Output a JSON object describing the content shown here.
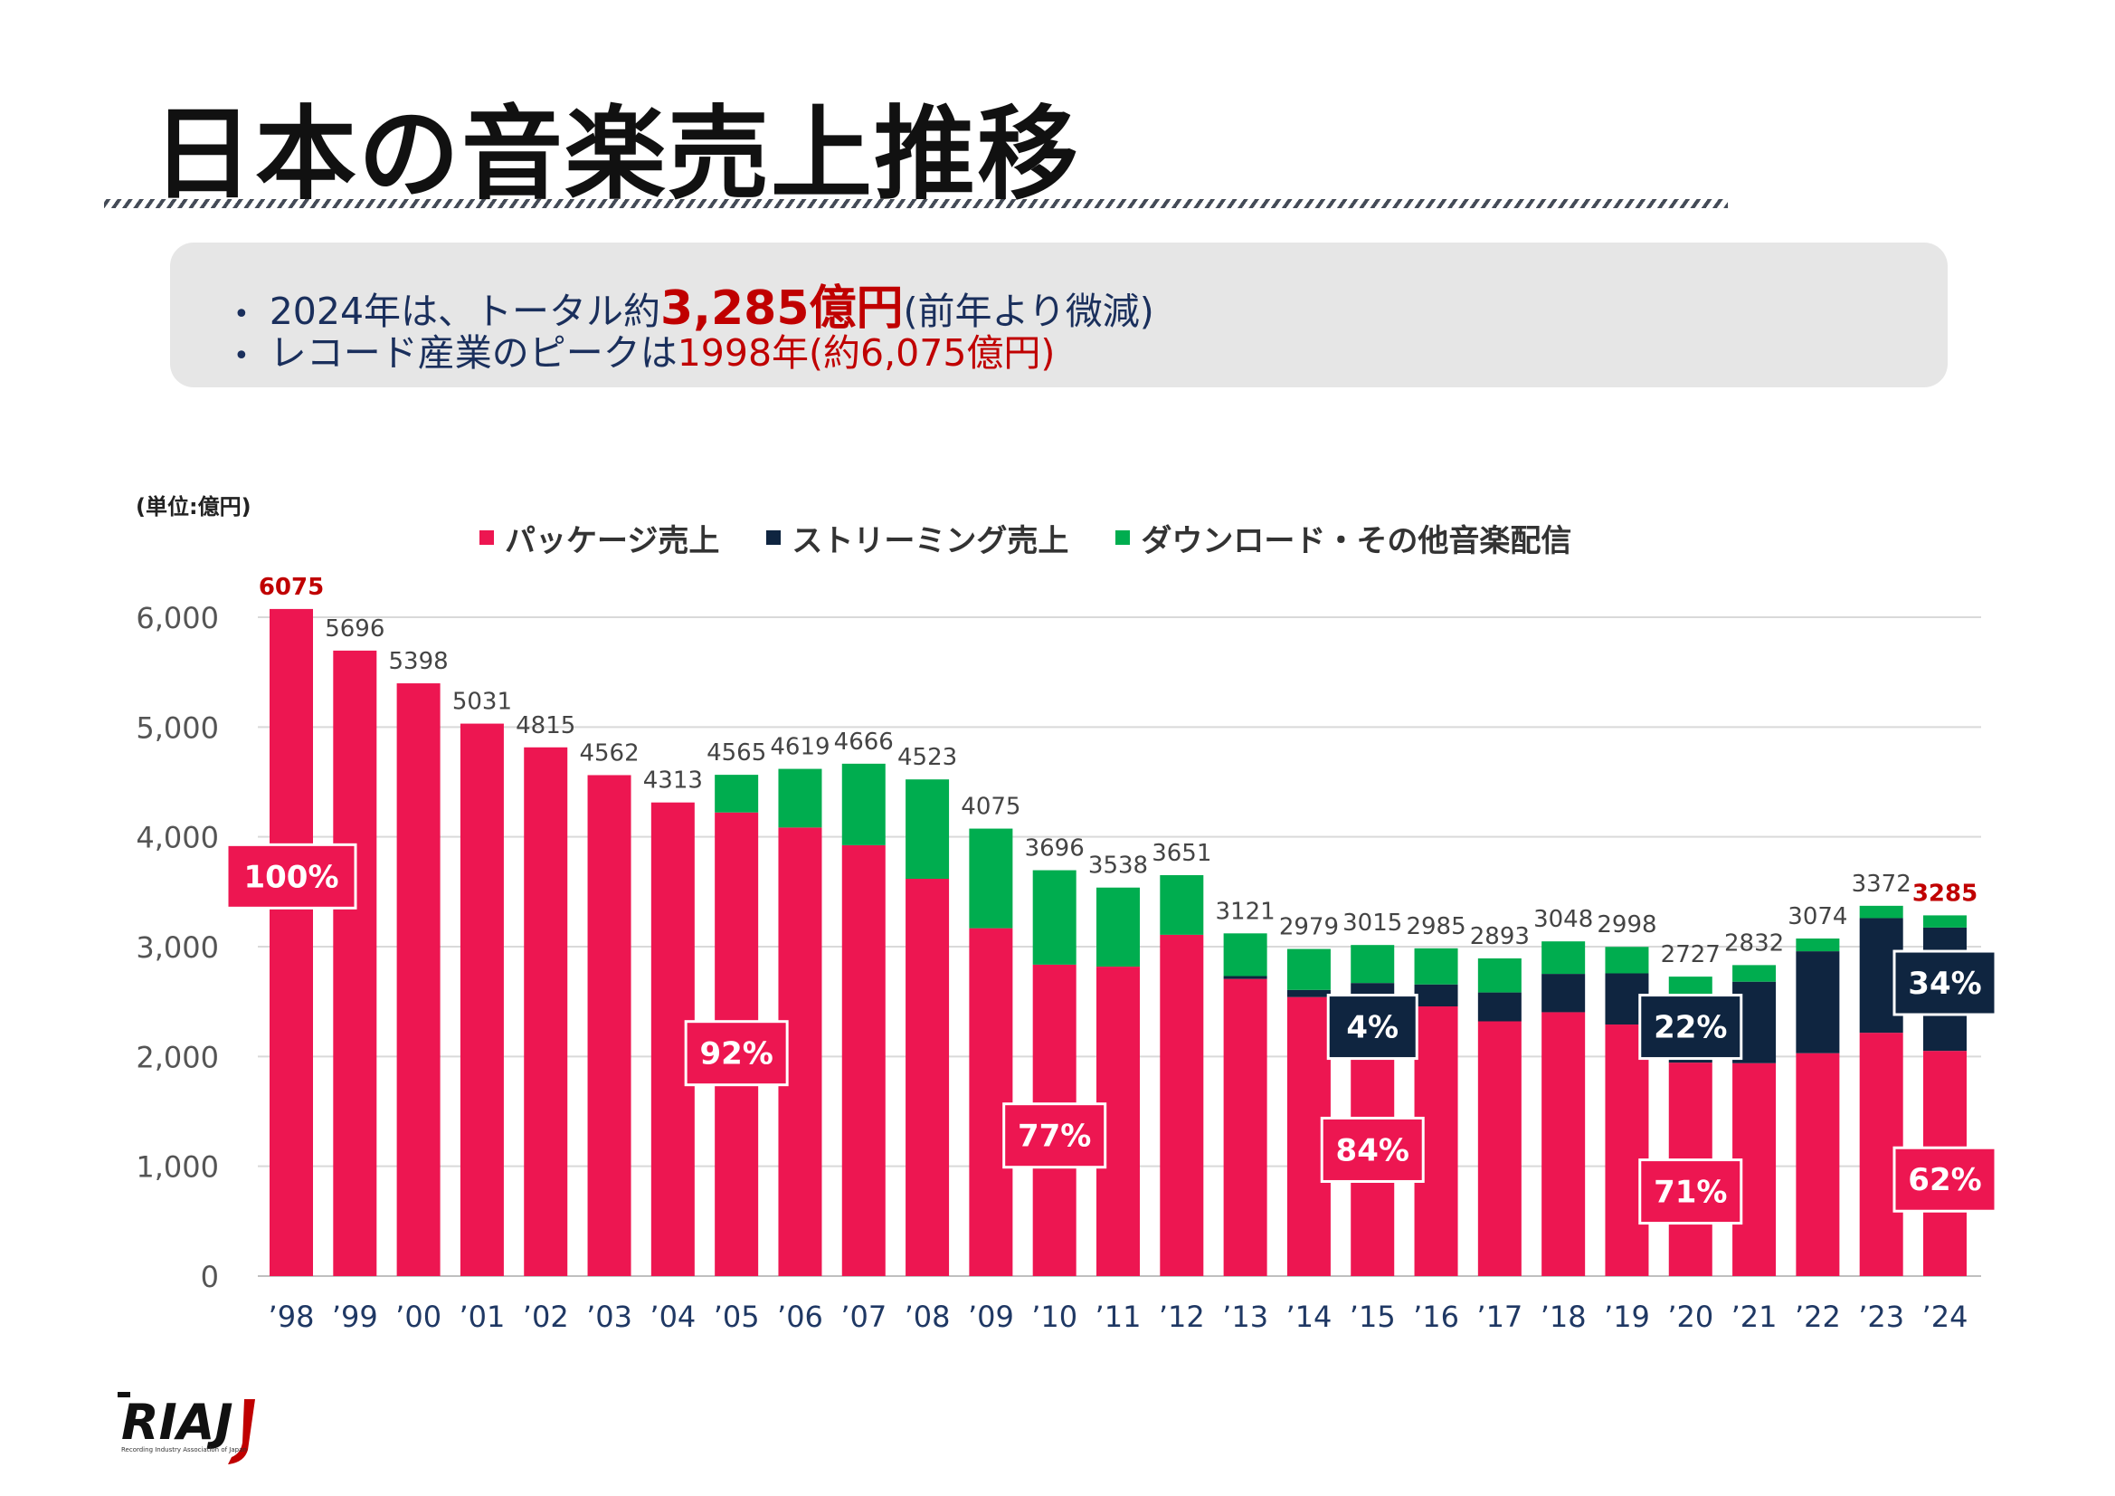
{
  "title": "日本の音楽売上推移",
  "summary": {
    "line1_a": "2024年は、トータル約",
    "line1_b": "3,285億円",
    "line1_c": "(前年より微減)",
    "line2_a": "レコード産業のピークは",
    "line2_b": "1998年(約6,075億円)"
  },
  "colors": {
    "package": "#ed1651",
    "streaming": "#0f2540",
    "download": "#00ad4f",
    "highlight": "#c00000",
    "grid": "#d9d9d9",
    "axis_text": "#555555",
    "category_text": "#1f3864"
  },
  "logo": {
    "text": "RIAJ",
    "subtitle": "Recording Industry Association of Japan"
  },
  "chart_data": {
    "type": "bar",
    "stacked": true,
    "unit_label": "(単位:億円)",
    "ylim": [
      0,
      6000
    ],
    "yticks": [
      "0",
      "1,000",
      "2,000",
      "3,000",
      "4,000",
      "5,000",
      "6,000"
    ],
    "grid": true,
    "legend_position": "top",
    "categories": [
      "’98",
      "’99",
      "’00",
      "’01",
      "’02",
      "’03",
      "’04",
      "’05",
      "’06",
      "’07",
      "’08",
      "’09",
      "’10",
      "’11",
      "’12",
      "’13",
      "’14",
      "’15",
      "’16",
      "’17",
      "’18",
      "’19",
      "’20",
      "’21",
      "’22",
      "’23",
      "’24"
    ],
    "series": [
      {
        "name": "パッケージ売上",
        "color": "#ed1651",
        "values": [
          6075,
          5696,
          5398,
          5031,
          4815,
          4562,
          4313,
          4222,
          4085,
          3924,
          3618,
          3168,
          2836,
          2818,
          3108,
          2706,
          2541,
          2544,
          2456,
          2320,
          2403,
          2291,
          1944,
          1939,
          2030,
          2216,
          2051
        ]
      },
      {
        "name": "ストリーミング売上",
        "color": "#0f2540",
        "values": [
          0,
          0,
          0,
          0,
          0,
          0,
          0,
          0,
          0,
          0,
          0,
          0,
          0,
          0,
          0,
          26,
          65,
          125,
          200,
          263,
          349,
          466,
          589,
          742,
          928,
          1044,
          1123
        ]
      },
      {
        "name": "ダウンロード・その他音楽配信",
        "color": "#00ad4f",
        "values": [
          0,
          0,
          0,
          0,
          0,
          0,
          0,
          343,
          534,
          742,
          905,
          907,
          860,
          720,
          543,
          389,
          373,
          346,
          329,
          310,
          296,
          241,
          194,
          151,
          116,
          112,
          111
        ]
      }
    ],
    "totals": [
      "6075",
      "5696",
      "5398",
      "5031",
      "4815",
      "4562",
      "4313",
      "4565",
      "4619",
      "4666",
      "4523",
      "4075",
      "3696",
      "3538",
      "3651",
      "3121",
      "2979",
      "3015",
      "2985",
      "2893",
      "3048",
      "2998",
      "2727",
      "2832",
      "3074",
      "3372",
      "3285"
    ],
    "highlighted_totals": [
      0,
      26
    ],
    "share_labels": [
      {
        "text": "100%",
        "category": 0,
        "y": 3640,
        "style": "package"
      },
      {
        "text": "92%",
        "category": 7,
        "y": 2030,
        "style": "package"
      },
      {
        "text": "77%",
        "category": 12,
        "y": 1280,
        "style": "package"
      },
      {
        "text": "84%",
        "category": 17,
        "y": 1150,
        "style": "package"
      },
      {
        "text": "71%",
        "category": 22,
        "y": 770,
        "style": "package"
      },
      {
        "text": "62%",
        "category": 26,
        "y": 880,
        "style": "package"
      },
      {
        "text": "4%",
        "category": 17,
        "y": 2270,
        "style": "streaming"
      },
      {
        "text": "22%",
        "category": 22,
        "y": 2270,
        "style": "streaming"
      },
      {
        "text": "34%",
        "category": 26,
        "y": 2670,
        "style": "streaming"
      }
    ]
  }
}
